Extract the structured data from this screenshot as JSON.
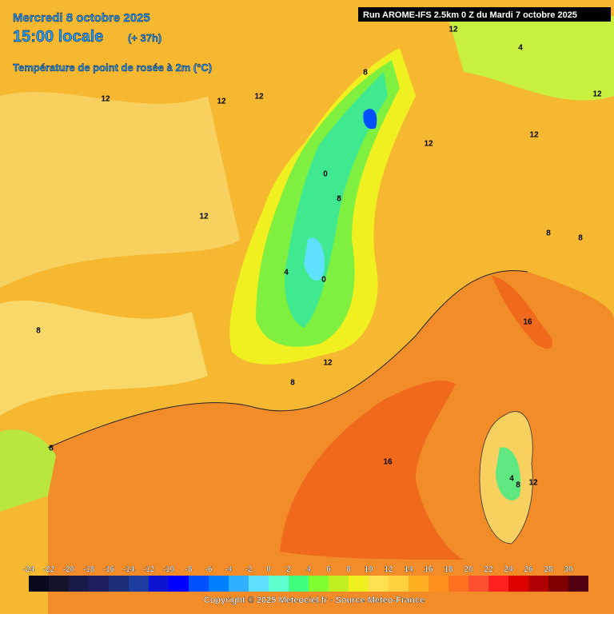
{
  "header": {
    "date": "Mercredi 8 octobre 2025",
    "time": "15:00 locale",
    "lead": "(+ 37h)",
    "parameter": "Température de point de rosée à 2m (°C)",
    "run": "Run AROME-IFS 2.5km 0 Z du Mardi 7 octobre 2025"
  },
  "map": {
    "contour_labels": [
      12,
      12,
      12,
      12,
      12,
      8,
      16,
      16,
      12,
      8,
      8,
      4,
      0,
      0,
      8,
      12,
      8,
      4,
      8,
      12,
      12,
      4,
      8,
      12,
      8
    ]
  },
  "legend": {
    "ticks": [
      -24,
      -22,
      -20,
      -18,
      -16,
      -14,
      -12,
      -10,
      -8,
      -6,
      -4,
      -2,
      0,
      2,
      4,
      6,
      8,
      10,
      12,
      14,
      16,
      18,
      20,
      22,
      24,
      26,
      28,
      30
    ],
    "colors": [
      "#0a0a1e",
      "#14142d",
      "#1a1a4a",
      "#202060",
      "#1e2f7a",
      "#1e3da0",
      "#0a14d2",
      "#0000ff",
      "#0050ff",
      "#0080ff",
      "#30b0ff",
      "#60e0ff",
      "#60ffd0",
      "#40ff80",
      "#80ff30",
      "#c0f020",
      "#f0f020",
      "#ffe050",
      "#ffd040",
      "#ffb020",
      "#ff9020",
      "#ff7020",
      "#ff5030",
      "#ff2020",
      "#e00000",
      "#b00000",
      "#800000",
      "#500010"
    ]
  },
  "footer": {
    "copyright": "Copyright © 2025 Meteociel.fr - Source Meteo-France"
  }
}
